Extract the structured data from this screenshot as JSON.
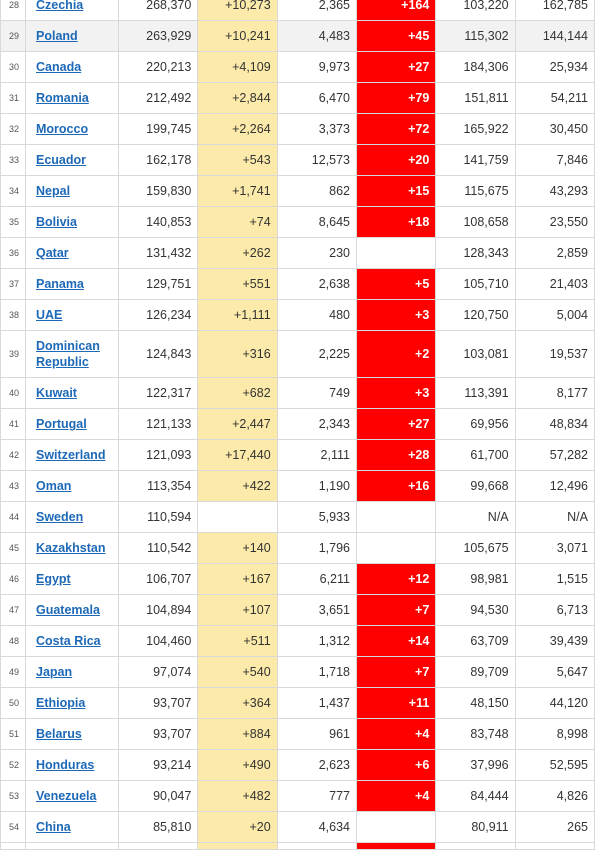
{
  "rows": [
    {
      "rank": "28",
      "country": "Czechia",
      "total_cases": "268,370",
      "new_cases": "+10,273",
      "total_deaths": "2,365",
      "new_deaths": "+164",
      "recovered": "103,220",
      "active": "162,785"
    },
    {
      "rank": "29",
      "country": "Poland",
      "total_cases": "263,929",
      "new_cases": "+10,241",
      "total_deaths": "4,483",
      "new_deaths": "+45",
      "recovered": "115,302",
      "active": "144,144"
    },
    {
      "rank": "30",
      "country": "Canada",
      "total_cases": "220,213",
      "new_cases": "+4,109",
      "total_deaths": "9,973",
      "new_deaths": "+27",
      "recovered": "184,306",
      "active": "25,934"
    },
    {
      "rank": "31",
      "country": "Romania",
      "total_cases": "212,492",
      "new_cases": "+2,844",
      "total_deaths": "6,470",
      "new_deaths": "+79",
      "recovered": "151,811",
      "active": "54,211"
    },
    {
      "rank": "32",
      "country": "Morocco",
      "total_cases": "199,745",
      "new_cases": "+2,264",
      "total_deaths": "3,373",
      "new_deaths": "+72",
      "recovered": "165,922",
      "active": "30,450"
    },
    {
      "rank": "33",
      "country": "Ecuador",
      "total_cases": "162,178",
      "new_cases": "+543",
      "total_deaths": "12,573",
      "new_deaths": "+20",
      "recovered": "141,759",
      "active": "7,846"
    },
    {
      "rank": "34",
      "country": "Nepal",
      "total_cases": "159,830",
      "new_cases": "+1,741",
      "total_deaths": "862",
      "new_deaths": "+15",
      "recovered": "115,675",
      "active": "43,293"
    },
    {
      "rank": "35",
      "country": "Bolivia",
      "total_cases": "140,853",
      "new_cases": "+74",
      "total_deaths": "8,645",
      "new_deaths": "+18",
      "recovered": "108,658",
      "active": "23,550"
    },
    {
      "rank": "36",
      "country": "Qatar",
      "total_cases": "131,432",
      "new_cases": "+262",
      "total_deaths": "230",
      "new_deaths": "",
      "recovered": "128,343",
      "active": "2,859"
    },
    {
      "rank": "37",
      "country": "Panama",
      "total_cases": "129,751",
      "new_cases": "+551",
      "total_deaths": "2,638",
      "new_deaths": "+5",
      "recovered": "105,710",
      "active": "21,403"
    },
    {
      "rank": "38",
      "country": "UAE",
      "total_cases": "126,234",
      "new_cases": "+1,111",
      "total_deaths": "480",
      "new_deaths": "+3",
      "recovered": "120,750",
      "active": "5,004"
    },
    {
      "rank": "39",
      "country": "Dominican Republic",
      "total_cases": "124,843",
      "new_cases": "+316",
      "total_deaths": "2,225",
      "new_deaths": "+2",
      "recovered": "103,081",
      "active": "19,537"
    },
    {
      "rank": "40",
      "country": "Kuwait",
      "total_cases": "122,317",
      "new_cases": "+682",
      "total_deaths": "749",
      "new_deaths": "+3",
      "recovered": "113,391",
      "active": "8,177"
    },
    {
      "rank": "41",
      "country": "Portugal",
      "total_cases": "121,133",
      "new_cases": "+2,447",
      "total_deaths": "2,343",
      "new_deaths": "+27",
      "recovered": "69,956",
      "active": "48,834"
    },
    {
      "rank": "42",
      "country": "Switzerland",
      "total_cases": "121,093",
      "new_cases": "+17,440",
      "total_deaths": "2,111",
      "new_deaths": "+28",
      "recovered": "61,700",
      "active": "57,282"
    },
    {
      "rank": "43",
      "country": "Oman",
      "total_cases": "113,354",
      "new_cases": "+422",
      "total_deaths": "1,190",
      "new_deaths": "+16",
      "recovered": "99,668",
      "active": "12,496"
    },
    {
      "rank": "44",
      "country": "Sweden",
      "total_cases": "110,594",
      "new_cases": "",
      "total_deaths": "5,933",
      "new_deaths": "",
      "recovered": "N/A",
      "active": "N/A"
    },
    {
      "rank": "45",
      "country": "Kazakhstan",
      "total_cases": "110,542",
      "new_cases": "+140",
      "total_deaths": "1,796",
      "new_deaths": "",
      "recovered": "105,675",
      "active": "3,071"
    },
    {
      "rank": "46",
      "country": "Egypt",
      "total_cases": "106,707",
      "new_cases": "+167",
      "total_deaths": "6,211",
      "new_deaths": "+12",
      "recovered": "98,981",
      "active": "1,515"
    },
    {
      "rank": "47",
      "country": "Guatemala",
      "total_cases": "104,894",
      "new_cases": "+107",
      "total_deaths": "3,651",
      "new_deaths": "+7",
      "recovered": "94,530",
      "active": "6,713"
    },
    {
      "rank": "48",
      "country": "Costa Rica",
      "total_cases": "104,460",
      "new_cases": "+511",
      "total_deaths": "1,312",
      "new_deaths": "+14",
      "recovered": "63,709",
      "active": "39,439"
    },
    {
      "rank": "49",
      "country": "Japan",
      "total_cases": "97,074",
      "new_cases": "+540",
      "total_deaths": "1,718",
      "new_deaths": "+7",
      "recovered": "89,709",
      "active": "5,647"
    },
    {
      "rank": "50",
      "country": "Ethiopia",
      "total_cases": "93,707",
      "new_cases": "+364",
      "total_deaths": "1,437",
      "new_deaths": "+11",
      "recovered": "48,150",
      "active": "44,120"
    },
    {
      "rank": "51",
      "country": "Belarus",
      "total_cases": "93,707",
      "new_cases": "+884",
      "total_deaths": "961",
      "new_deaths": "+4",
      "recovered": "83,748",
      "active": "8,998"
    },
    {
      "rank": "52",
      "country": "Honduras",
      "total_cases": "93,214",
      "new_cases": "+490",
      "total_deaths": "2,623",
      "new_deaths": "+6",
      "recovered": "37,996",
      "active": "52,595"
    },
    {
      "rank": "53",
      "country": "Venezuela",
      "total_cases": "90,047",
      "new_cases": "+482",
      "total_deaths": "777",
      "new_deaths": "+4",
      "recovered": "84,444",
      "active": "4,826"
    },
    {
      "rank": "54",
      "country": "China",
      "total_cases": "85,810",
      "new_cases": "+20",
      "total_deaths": "4,634",
      "new_deaths": "",
      "recovered": "80,911",
      "active": "265"
    }
  ],
  "colors": {
    "new_cases_bg": "#fbeaa9",
    "new_deaths_bg": "#ff0000",
    "link": "#1d69b7",
    "highlight_row": "#f2f2f2"
  }
}
